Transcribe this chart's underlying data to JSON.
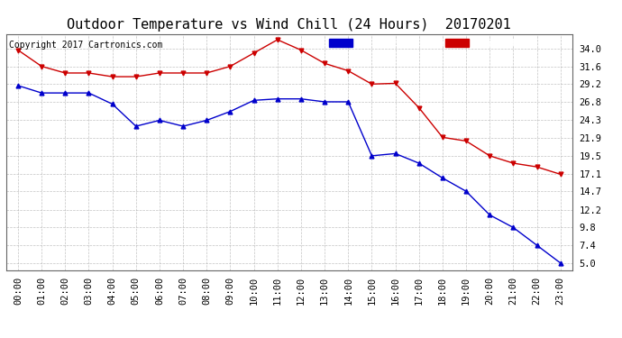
{
  "title": "Outdoor Temperature vs Wind Chill (24 Hours)  20170201",
  "copyright": "Copyright 2017 Cartronics.com",
  "x_labels": [
    "00:00",
    "01:00",
    "02:00",
    "03:00",
    "04:00",
    "05:00",
    "06:00",
    "07:00",
    "08:00",
    "09:00",
    "10:00",
    "11:00",
    "12:00",
    "13:00",
    "14:00",
    "15:00",
    "16:00",
    "17:00",
    "18:00",
    "19:00",
    "20:00",
    "21:00",
    "22:00",
    "23:00"
  ],
  "temperature": [
    33.8,
    31.6,
    30.7,
    30.7,
    30.2,
    30.2,
    30.7,
    30.7,
    30.7,
    31.6,
    33.4,
    35.2,
    33.8,
    32.0,
    31.0,
    29.2,
    29.3,
    26.0,
    22.0,
    21.5,
    19.5,
    18.5,
    18.0,
    17.0
  ],
  "wind_chill": [
    29.0,
    28.0,
    28.0,
    28.0,
    26.5,
    23.5,
    24.3,
    23.5,
    24.3,
    25.5,
    27.0,
    27.2,
    27.2,
    26.8,
    26.8,
    19.5,
    19.8,
    18.5,
    16.5,
    14.7,
    11.5,
    9.8,
    7.4,
    5.0
  ],
  "y_ticks": [
    5.0,
    7.4,
    9.8,
    12.2,
    14.7,
    17.1,
    19.5,
    21.9,
    24.3,
    26.8,
    29.2,
    31.6,
    34.0
  ],
  "y_min": 4.0,
  "y_max": 36.0,
  "temp_color": "#cc0000",
  "wind_color": "#0000cc",
  "legend_wind_bg": "#0000cc",
  "legend_temp_bg": "#cc0000",
  "background_color": "#ffffff",
  "plot_bg": "#ffffff",
  "grid_color": "#aaaaaa",
  "title_fontsize": 11,
  "tick_fontsize": 7.5,
  "copyright_fontsize": 7
}
